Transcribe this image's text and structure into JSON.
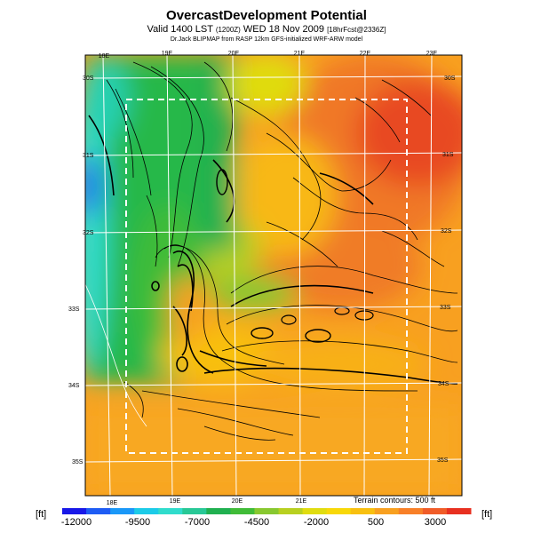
{
  "header": {
    "title": "OvercastDevelopment Potential",
    "subtitle_main": "Valid 1400 LST",
    "subtitle_small1": "(1200Z)",
    "subtitle_date": "WED 18 Nov 2009",
    "subtitle_small2": "[18hrFcst@2336Z]",
    "caption": "Dr.Jack BLIPMAP from RASP 12km GFS-initialized WRF-ARW model"
  },
  "map": {
    "lon_top": [
      "18E",
      "19E",
      "20E",
      "21E",
      "22E",
      "23E"
    ],
    "lon_bottom": [
      "18E",
      "19E",
      "20E",
      "21E"
    ],
    "lat_left": [
      "30S",
      "31S",
      "32S",
      "33S",
      "34S",
      "35S"
    ],
    "lat_right": [
      "30S",
      "31S",
      "32S",
      "33S",
      "34S",
      "35S"
    ],
    "terrain_note": "Terrain contours: 500 ft"
  },
  "colorbar": {
    "unit_left": "[ft]",
    "unit_right": "[ft]",
    "labels": [
      "-12000",
      "-9500",
      "-7000",
      "-4500",
      "-2000",
      "500",
      "3000"
    ],
    "colors": [
      "#1818e8",
      "#1e5cf4",
      "#1a98f8",
      "#1ccbe8",
      "#30dccc",
      "#28c896",
      "#20b050",
      "#40bc38",
      "#88c830",
      "#b8d020",
      "#e0dc10",
      "#f8d808",
      "#f8c010",
      "#f8a020",
      "#f88028",
      "#f05c28",
      "#e83020"
    ]
  }
}
